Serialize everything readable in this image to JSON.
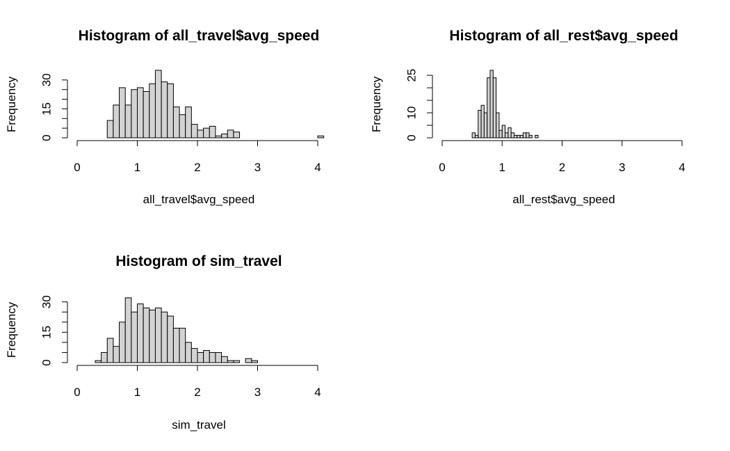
{
  "chart_data": [
    {
      "type": "histogram",
      "title": "Histogram of all_travel$avg_speed",
      "xlabel": "all_travel$avg_speed",
      "ylabel": "Frequency",
      "xlim": [
        0,
        4
      ],
      "ylim": [
        0,
        35
      ],
      "xticks": [
        0,
        1,
        2,
        3,
        4
      ],
      "yticks": [
        0,
        15,
        30
      ],
      "bin_width": 0.1,
      "bins_start": [
        0.5,
        0.6,
        0.7,
        0.8,
        0.9,
        1.0,
        1.1,
        1.2,
        1.3,
        1.4,
        1.5,
        1.6,
        1.7,
        1.8,
        1.9,
        2.0,
        2.1,
        2.2,
        2.3,
        2.4,
        2.5,
        2.6,
        2.7,
        2.8,
        2.9,
        3.0,
        3.1,
        3.2,
        3.3,
        3.4,
        3.5,
        3.6,
        3.7,
        3.8,
        3.9,
        4.0
      ],
      "values": [
        9,
        17,
        26,
        17,
        25,
        26,
        24,
        28,
        35,
        29,
        28,
        16,
        12,
        16,
        7,
        4,
        5,
        6,
        1,
        2,
        4,
        3,
        0,
        0,
        0,
        0,
        0,
        0,
        0,
        0,
        0,
        0,
        0,
        0,
        0,
        1
      ]
    },
    {
      "type": "histogram",
      "title": "Histogram of all_rest$avg_speed",
      "xlabel": "all_rest$avg_speed",
      "ylabel": "Frequency",
      "xlim": [
        0,
        4
      ],
      "ylim": [
        0,
        27
      ],
      "xticks": [
        0,
        1,
        2,
        3,
        4
      ],
      "yticks": [
        0,
        10,
        25
      ],
      "bin_width": 0.05,
      "bins_start": [
        0.5,
        0.55,
        0.6,
        0.65,
        0.7,
        0.75,
        0.8,
        0.85,
        0.9,
        0.95,
        1.0,
        1.05,
        1.1,
        1.15,
        1.2,
        1.25,
        1.3,
        1.35,
        1.4,
        1.45,
        1.5,
        1.55
      ],
      "values": [
        2,
        1,
        11,
        13,
        10,
        24,
        27,
        24,
        10,
        3,
        5,
        2,
        4,
        2,
        1,
        1,
        1,
        2,
        2,
        1,
        0,
        1
      ]
    },
    {
      "type": "histogram",
      "title": "Histogram of sim_travel",
      "xlabel": "sim_travel",
      "ylabel": "Frequency",
      "xlim": [
        0,
        4
      ],
      "ylim": [
        0,
        33
      ],
      "xticks": [
        0,
        1,
        2,
        3,
        4
      ],
      "yticks": [
        0,
        15,
        30
      ],
      "bin_width": 0.1,
      "bins_start": [
        0.3,
        0.4,
        0.5,
        0.6,
        0.7,
        0.8,
        0.9,
        1.0,
        1.1,
        1.2,
        1.3,
        1.4,
        1.5,
        1.6,
        1.7,
        1.8,
        1.9,
        2.0,
        2.1,
        2.2,
        2.3,
        2.4,
        2.5,
        2.6,
        2.7,
        2.8,
        2.9
      ],
      "values": [
        1,
        5,
        12,
        8,
        20,
        32,
        25,
        29,
        27,
        26,
        27,
        25,
        23,
        17,
        17,
        10,
        7,
        5,
        6,
        5,
        5,
        3,
        1,
        1,
        0,
        2,
        1
      ]
    }
  ]
}
